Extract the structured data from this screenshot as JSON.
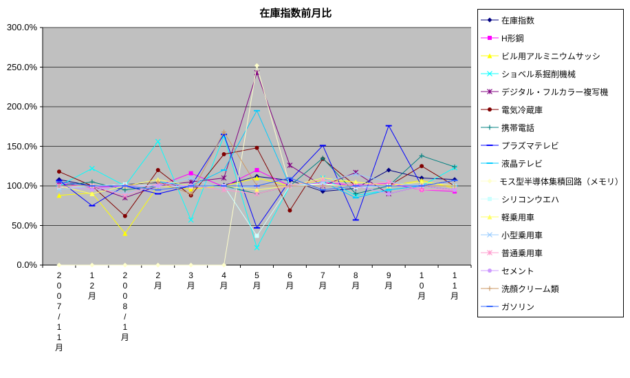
{
  "chart_data": {
    "type": "line",
    "title": "在庫指数前月比",
    "categories": [
      "2007/11月",
      "12月",
      "2008/1月",
      "2月",
      "3月",
      "4月",
      "5月",
      "6月",
      "7月",
      "8月",
      "9月",
      "10月",
      "11月"
    ],
    "y_ticks": [
      "0.0%",
      "50.0%",
      "100.0%",
      "150.0%",
      "200.0%",
      "250.0%",
      "300.0%"
    ],
    "ylim": [
      0,
      300
    ],
    "grid": true,
    "plot_bg": "#C0C0C0",
    "legend_position": "right",
    "series": [
      {
        "name": "在庫指数",
        "color": "#000080",
        "marker": "diamond",
        "values": [
          108,
          100,
          102,
          104,
          98,
          101,
          112,
          107,
          93,
          97,
          120,
          110,
          108
        ]
      },
      {
        "name": "H形鋼",
        "color": "#FF00FF",
        "marker": "square",
        "values": [
          103,
          98,
          100,
          100,
          116,
          99,
          120,
          100,
          104,
          101,
          103,
          95,
          93
        ]
      },
      {
        "name": "ビル用アルミニウムサッシ",
        "color": "#FFFF00",
        "marker": "triangle",
        "values": [
          88,
          91,
          40,
          100,
          96,
          100,
          110,
          100,
          107,
          105,
          100,
          107,
          97
        ]
      },
      {
        "name": "ショベル系掘削機械",
        "color": "#00FFFF",
        "marker": "x",
        "values": [
          100,
          122,
          100,
          156,
          57,
          163,
          22,
          100,
          110,
          88,
          95,
          100,
          123
        ]
      },
      {
        "name": "デジタル・フルカラー複写機",
        "color": "#800080",
        "marker": "asterisk",
        "values": [
          105,
          100,
          85,
          100,
          105,
          110,
          243,
          126,
          100,
          117,
          90,
          100,
          95
        ]
      },
      {
        "name": "電気冷蔵庫",
        "color": "#800000",
        "marker": "circle",
        "values": [
          118,
          100,
          62,
          120,
          88,
          140,
          148,
          69,
          134,
          100,
          100,
          125,
          100
        ]
      },
      {
        "name": "携帯電話",
        "color": "#008080",
        "marker": "plus",
        "values": [
          100,
          105,
          95,
          100,
          100,
          100,
          90,
          100,
          135,
          90,
          100,
          138,
          124
        ]
      },
      {
        "name": "プラズマテレビ",
        "color": "#0000FF",
        "marker": "dash",
        "values": [
          107,
          75,
          100,
          90,
          100,
          165,
          47,
          107,
          151,
          57,
          176,
          100,
          107
        ]
      },
      {
        "name": "液晶テレビ",
        "color": "#00CCFF",
        "marker": "dash",
        "values": [
          100,
          100,
          100,
          105,
          100,
          120,
          195,
          100,
          105,
          85,
          95,
          100,
          100
        ]
      },
      {
        "name": "モス型半導体集積回路（メモリ）",
        "color": "#FFFFCC",
        "marker": "diamond",
        "values": [
          0,
          0,
          0,
          0,
          0,
          0,
          252,
          100,
          103,
          98,
          100,
          100,
          100
        ]
      },
      {
        "name": "シリコンウエハ",
        "color": "#CCFFFF",
        "marker": "square",
        "values": [
          98,
          100,
          102,
          100,
          99,
          100,
          37,
          100,
          102,
          98,
          100,
          100,
          100
        ]
      },
      {
        "name": "軽乗用車",
        "color": "#FFFF66",
        "marker": "triangle",
        "values": [
          100,
          90,
          100,
          108,
          100,
          100,
          95,
          100,
          110,
          105,
          100,
          105,
          100
        ]
      },
      {
        "name": "小型乗用車",
        "color": "#99CCFF",
        "marker": "x",
        "values": [
          95,
          100,
          90,
          100,
          110,
          95,
          100,
          100,
          105,
          115,
          105,
          100,
          100
        ]
      },
      {
        "name": "普通乗用車",
        "color": "#FF99CC",
        "marker": "asterisk",
        "values": [
          100,
          100,
          88,
          103,
          100,
          95,
          90,
          100,
          108,
          100,
          105,
          95,
          95
        ]
      },
      {
        "name": "セメント",
        "color": "#CC99FF",
        "marker": "circle",
        "values": [
          100,
          95,
          100,
          100,
          100,
          100,
          100,
          100,
          100,
          100,
          90,
          100,
          95
        ]
      },
      {
        "name": "洗顔クリーム類",
        "color": "#CC9966",
        "marker": "plus",
        "values": [
          100,
          100,
          100,
          105,
          90,
          168,
          100,
          100,
          100,
          100,
          100,
          100,
          100
        ]
      },
      {
        "name": "ガソリン",
        "color": "#3366FF",
        "marker": "dash",
        "values": [
          105,
          100,
          100,
          95,
          100,
          100,
          100,
          110,
          95,
          100,
          100,
          100,
          107
        ]
      }
    ]
  }
}
